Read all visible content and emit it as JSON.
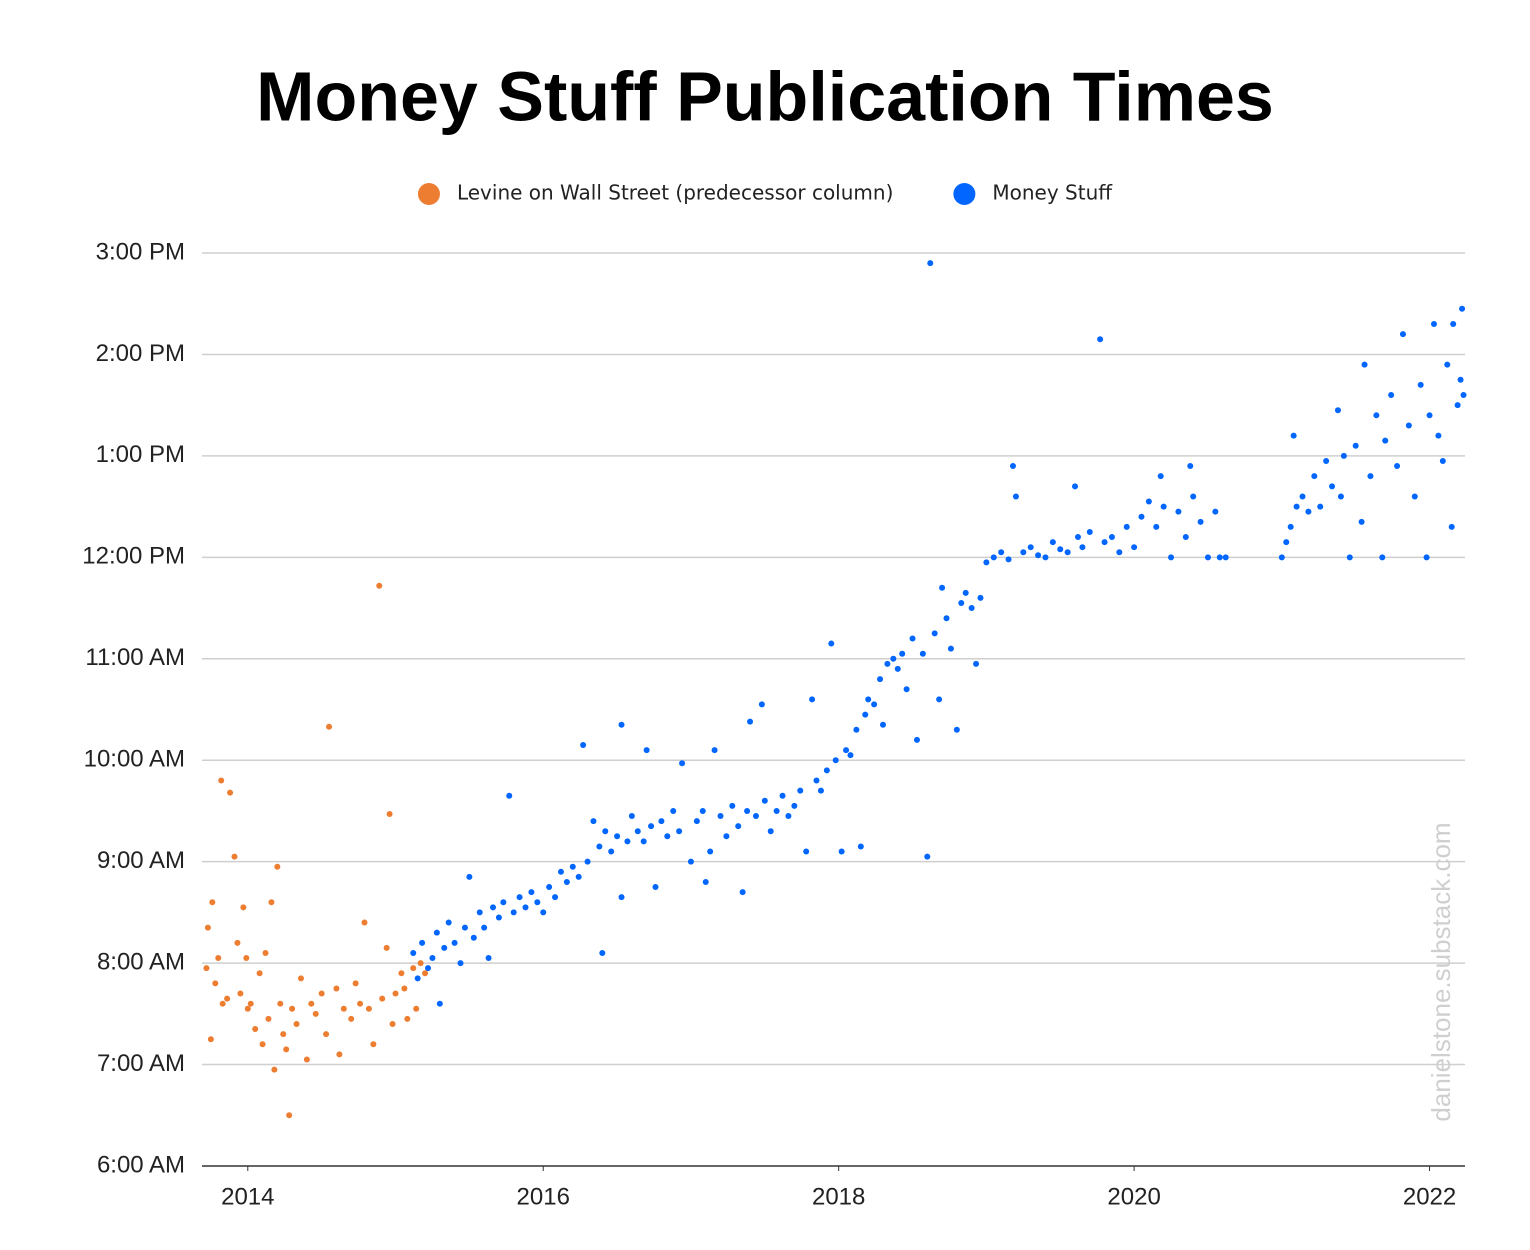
{
  "chart_data": {
    "type": "scatter",
    "title": "Money Stuff Publication Times",
    "annotation": "danielstone.substack.com",
    "xlim": [
      2013.69,
      2022.24
    ],
    "xticks": [
      2014,
      2016,
      2018,
      2020,
      2022
    ],
    "ylim": [
      6,
      15
    ],
    "yticks": [
      {
        "value": 6,
        "label": "6:00 AM"
      },
      {
        "value": 7,
        "label": "7:00 AM"
      },
      {
        "value": 8,
        "label": "8:00 AM"
      },
      {
        "value": 9,
        "label": "9:00 AM"
      },
      {
        "value": 10,
        "label": "10:00 AM"
      },
      {
        "value": 11,
        "label": "11:00 AM"
      },
      {
        "value": 12,
        "label": "12:00 PM"
      },
      {
        "value": 13,
        "label": "1:00 PM"
      },
      {
        "value": 14,
        "label": "2:00 PM"
      },
      {
        "value": 15,
        "label": "3:00 PM"
      }
    ],
    "grid": true,
    "legend": "top",
    "series": [
      {
        "name": "Levine on Wall Street (predecessor column)",
        "color": "#ed7d31",
        "x": [
          2013.72,
          2013.73,
          2013.75,
          2013.76,
          2013.78,
          2013.8,
          2013.82,
          2013.83,
          2013.86,
          2013.88,
          2013.91,
          2013.93,
          2013.95,
          2013.97,
          2013.99,
          2014.0,
          2014.02,
          2014.05,
          2014.08,
          2014.1,
          2014.12,
          2014.14,
          2014.16,
          2014.18,
          2014.2,
          2014.22,
          2014.24,
          2014.26,
          2014.28,
          2014.3,
          2014.33,
          2014.36,
          2014.4,
          2014.43,
          2014.46,
          2014.5,
          2014.53,
          2014.55,
          2014.6,
          2014.62,
          2014.65,
          2014.7,
          2014.73,
          2014.76,
          2014.79,
          2014.82,
          2014.85,
          2014.89,
          2014.91,
          2014.94,
          2014.96,
          2014.98,
          2015.0,
          2015.04,
          2015.06,
          2015.08,
          2015.12,
          2015.14,
          2015.17,
          2015.2
        ],
        "values": [
          7.95,
          8.35,
          7.25,
          8.6,
          7.8,
          8.05,
          9.8,
          7.6,
          7.65,
          9.68,
          9.05,
          8.2,
          7.7,
          8.55,
          8.05,
          7.55,
          7.6,
          7.35,
          7.9,
          7.2,
          8.1,
          7.45,
          8.6,
          6.95,
          8.95,
          7.6,
          7.3,
          7.15,
          6.5,
          7.55,
          7.4,
          7.85,
          7.05,
          7.6,
          7.5,
          7.7,
          7.3,
          10.33,
          7.75,
          7.1,
          7.55,
          7.45,
          7.8,
          7.6,
          8.4,
          7.55,
          7.2,
          11.72,
          7.65,
          8.15,
          9.47,
          7.4,
          7.7,
          7.9,
          7.75,
          7.45,
          7.95,
          7.55,
          8.0,
          7.9
        ]
      },
      {
        "name": "Money Stuff",
        "color": "#0066ff",
        "x": [
          2015.12,
          2015.15,
          2015.18,
          2015.22,
          2015.25,
          2015.28,
          2015.3,
          2015.33,
          2015.36,
          2015.4,
          2015.44,
          2015.47,
          2015.5,
          2015.53,
          2015.57,
          2015.6,
          2015.63,
          2015.66,
          2015.7,
          2015.73,
          2015.77,
          2015.8,
          2015.84,
          2015.88,
          2015.92,
          2015.96,
          2016.0,
          2016.04,
          2016.08,
          2016.12,
          2016.16,
          2016.2,
          2016.24,
          2016.27,
          2016.3,
          2016.34,
          2016.38,
          2016.4,
          2016.42,
          2016.46,
          2016.5,
          2016.53,
          2016.53,
          2016.57,
          2016.6,
          2016.64,
          2016.68,
          2016.7,
          2016.73,
          2016.76,
          2016.8,
          2016.84,
          2016.88,
          2016.92,
          2016.94,
          2017.0,
          2017.04,
          2017.08,
          2017.1,
          2017.13,
          2017.16,
          2017.2,
          2017.24,
          2017.28,
          2017.32,
          2017.35,
          2017.38,
          2017.4,
          2017.44,
          2017.48,
          2017.5,
          2017.54,
          2017.58,
          2017.62,
          2017.66,
          2017.7,
          2017.74,
          2017.78,
          2017.82,
          2017.85,
          2017.88,
          2017.92,
          2017.95,
          2017.98,
          2018.02,
          2018.05,
          2018.08,
          2018.12,
          2018.15,
          2018.18,
          2018.2,
          2018.24,
          2018.28,
          2018.3,
          2018.33,
          2018.37,
          2018.4,
          2018.43,
          2018.46,
          2018.5,
          2018.53,
          2018.57,
          2018.6,
          2018.62,
          2018.65,
          2018.68,
          2018.7,
          2018.73,
          2018.76,
          2018.8,
          2018.83,
          2018.86,
          2018.9,
          2018.93,
          2018.96,
          2019.0,
          2019.05,
          2019.1,
          2019.15,
          2019.18,
          2019.2,
          2019.25,
          2019.3,
          2019.35,
          2019.4,
          2019.45,
          2019.5,
          2019.55,
          2019.6,
          2019.62,
          2019.65,
          2019.7,
          2019.77,
          2019.8,
          2019.85,
          2019.9,
          2019.95,
          2020.0,
          2020.05,
          2020.1,
          2020.15,
          2020.18,
          2020.2,
          2020.25,
          2020.3,
          2020.35,
          2020.38,
          2020.4,
          2020.45,
          2020.5,
          2020.55,
          2020.58,
          2020.62,
          2021.0,
          2021.03,
          2021.06,
          2021.08,
          2021.1,
          2021.14,
          2021.18,
          2021.22,
          2021.26,
          2021.3,
          2021.34,
          2021.38,
          2021.4,
          2021.42,
          2021.46,
          2021.5,
          2021.54,
          2021.56,
          2021.6,
          2021.64,
          2021.68,
          2021.7,
          2021.74,
          2021.78,
          2021.82,
          2021.86,
          2021.9,
          2021.94,
          2021.98,
          2022.0,
          2022.03,
          2022.06,
          2022.09,
          2022.12,
          2022.15,
          2022.16,
          2022.19,
          2022.21,
          2022.22,
          2022.23
        ],
        "values": [
          8.1,
          7.85,
          8.2,
          7.95,
          8.05,
          8.3,
          7.6,
          8.15,
          8.4,
          8.2,
          8.0,
          8.35,
          8.85,
          8.25,
          8.5,
          8.35,
          8.05,
          8.55,
          8.45,
          8.6,
          9.65,
          8.5,
          8.65,
          8.55,
          8.7,
          8.6,
          8.5,
          8.75,
          8.65,
          8.9,
          8.8,
          8.95,
          8.85,
          10.15,
          9.0,
          9.4,
          9.15,
          8.1,
          9.3,
          9.1,
          9.25,
          10.35,
          8.65,
          9.2,
          9.45,
          9.3,
          9.2,
          10.1,
          9.35,
          8.75,
          9.4,
          9.25,
          9.5,
          9.3,
          9.97,
          9.0,
          9.4,
          9.5,
          8.8,
          9.1,
          10.1,
          9.45,
          9.25,
          9.55,
          9.35,
          8.7,
          9.5,
          10.38,
          9.45,
          10.55,
          9.6,
          9.3,
          9.5,
          9.65,
          9.45,
          9.55,
          9.7,
          9.1,
          10.6,
          9.8,
          9.7,
          9.9,
          11.15,
          10.0,
          9.1,
          10.1,
          10.05,
          10.3,
          9.15,
          10.45,
          10.6,
          10.55,
          10.8,
          10.35,
          10.95,
          11.0,
          10.9,
          11.05,
          10.7,
          11.2,
          10.2,
          11.05,
          9.05,
          14.9,
          11.25,
          10.6,
          11.7,
          11.4,
          11.1,
          10.3,
          11.55,
          11.65,
          11.5,
          10.95,
          11.6,
          11.95,
          12.0,
          12.05,
          11.98,
          12.9,
          12.6,
          12.05,
          12.1,
          12.02,
          12.0,
          12.15,
          12.08,
          12.05,
          12.7,
          12.2,
          12.1,
          12.25,
          14.15,
          12.15,
          12.2,
          12.05,
          12.3,
          12.1,
          12.4,
          12.55,
          12.3,
          12.8,
          12.5,
          12.0,
          12.45,
          12.2,
          12.9,
          12.6,
          12.35,
          12.0,
          12.45,
          12.0,
          12.0,
          12.0,
          12.15,
          12.3,
          13.2,
          12.5,
          12.6,
          12.45,
          12.8,
          12.5,
          12.95,
          12.7,
          13.45,
          12.6,
          13.0,
          12.0,
          13.1,
          12.35,
          13.9,
          12.8,
          13.4,
          12.0,
          13.15,
          13.6,
          12.9,
          14.2,
          13.3,
          12.6,
          13.7,
          12.0,
          13.4,
          14.3,
          13.2,
          12.95,
          13.9,
          12.3,
          14.3,
          13.5,
          13.75,
          14.45,
          13.6
        ]
      }
    ]
  }
}
